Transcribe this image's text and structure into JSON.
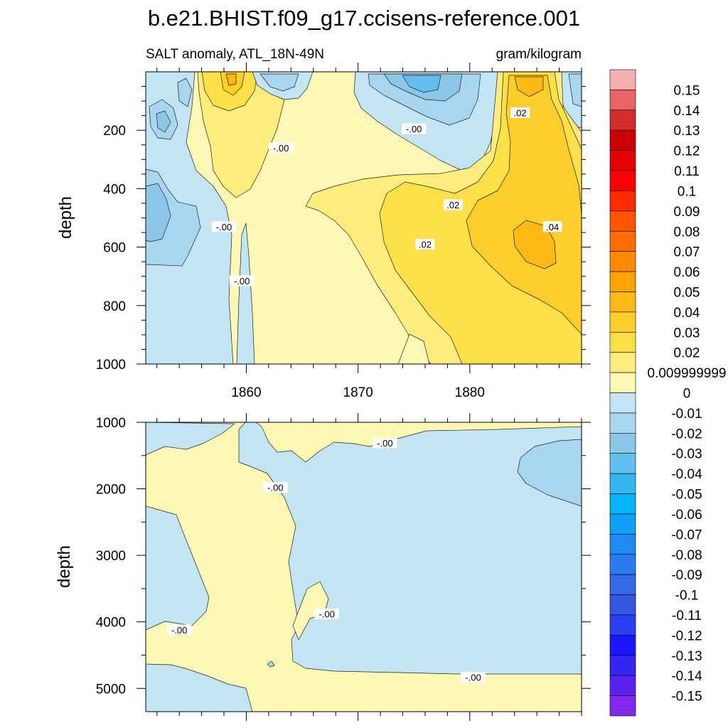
{
  "title": "b.e21.BHIST.f09_g17.ccisens-reference.001",
  "subtitle_left": "SALT anomaly, ATL_18N-49N",
  "subtitle_right": "gram/kilogram",
  "chart_data": [
    {
      "type": "heatmap",
      "panel": "upper",
      "xlabel": "",
      "ylabel": "depth",
      "xlim": [
        1851,
        1890
      ],
      "ylim": [
        1000,
        0
      ],
      "x_ticks": [
        1860,
        1870,
        1880
      ],
      "x_tick_labels": [
        "1860",
        "1870",
        "1880"
      ],
      "y_ticks": [
        200,
        400,
        600,
        800,
        1000
      ],
      "y_tick_labels": [
        "200",
        "400",
        "600",
        "800",
        "1000"
      ],
      "contour_labels": [
        {
          "text": "-.00",
          "x": 1863.1,
          "y": 260
        },
        {
          "text": "-.00",
          "x": 1875.0,
          "y": 195
        },
        {
          "text": ".02",
          "x": 1884.5,
          "y": 140
        },
        {
          "text": ".02",
          "x": 1878.5,
          "y": 455
        },
        {
          "text": ".02",
          "x": 1876.0,
          "y": 590
        },
        {
          "text": ".04",
          "x": 1887.4,
          "y": 530
        },
        {
          "text": "-.00",
          "x": 1858.0,
          "y": 530
        },
        {
          "text": "-.00",
          "x": 1859.6,
          "y": 715
        }
      ]
    },
    {
      "type": "heatmap",
      "panel": "lower",
      "xlabel": "",
      "ylabel": "depth",
      "xlim": [
        1851,
        1890
      ],
      "ylim": [
        5350,
        1000
      ],
      "x_ticks": [
        1860,
        1870,
        1880
      ],
      "y_ticks": [
        1000,
        2000,
        3000,
        4000,
        5000
      ],
      "y_tick_labels": [
        "1000",
        "2000",
        "3000",
        "4000",
        "5000"
      ],
      "contour_labels": [
        {
          "text": "-.00",
          "x": 1872.4,
          "y": 1310
        },
        {
          "text": "-.00",
          "x": 1862.6,
          "y": 1980
        },
        {
          "text": "-.00",
          "x": 1867.2,
          "y": 3880
        },
        {
          "text": "-.00",
          "x": 1854.0,
          "y": 4120
        },
        {
          "text": "-.00",
          "x": 1880.3,
          "y": 4830
        }
      ]
    }
  ],
  "colorbar": {
    "labels": [
      "0.15",
      "0.14",
      "0.13",
      "0.12",
      "0.11",
      "0.1",
      "0.09",
      "0.08",
      "0.07",
      "0.06",
      "0.05",
      "0.04",
      "0.03",
      "0.02",
      "0.009999999",
      "0",
      "-0.01",
      "-0.02",
      "-0.03",
      "-0.04",
      "-0.05",
      "-0.06",
      "-0.07",
      "-0.08",
      "-0.09",
      "-0.1",
      "-0.11",
      "-0.12",
      "-0.13",
      "-0.14",
      "-0.15"
    ],
    "colors": [
      "#f7b0b0",
      "#e86464",
      "#d42c2c",
      "#cc0000",
      "#e40000",
      "#fa0000",
      "#ff2a00",
      "#ff5500",
      "#ff6e00",
      "#ff8800",
      "#ffa300",
      "#ffb915",
      "#fcce2c",
      "#fde047",
      "#feec7c",
      "#fef8b4",
      "#c3e4f3",
      "#a7d6ee",
      "#8cc7ea",
      "#64bff0",
      "#35b6f2",
      "#00b4f6",
      "#0fa0f5",
      "#1e8af2",
      "#2a7bef",
      "#326ae8",
      "#3655e0",
      "#2c3ff2",
      "#1a16ff",
      "#3326f1",
      "#5a22ee",
      "#8427ec"
    ]
  }
}
